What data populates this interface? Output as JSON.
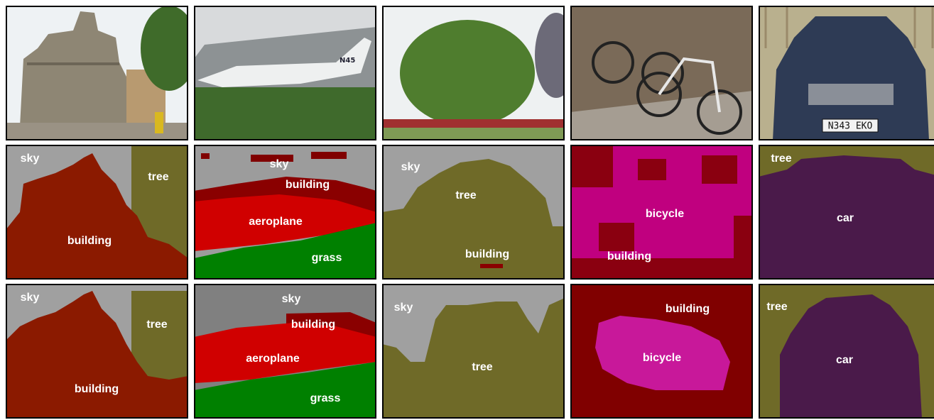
{
  "columns": [
    {
      "prediction": [
        "sky",
        "tree",
        "building"
      ],
      "ground_truth": [
        "sky",
        "tree",
        "building"
      ]
    },
    {
      "photo_text": "N45",
      "prediction": [
        "sky",
        "building",
        "aeroplane",
        "grass"
      ],
      "ground_truth": [
        "sky",
        "building",
        "aeroplane",
        "grass"
      ]
    },
    {
      "prediction": [
        "sky",
        "tree",
        "building"
      ],
      "ground_truth": [
        "sky",
        "tree"
      ]
    },
    {
      "prediction": [
        "bicycle",
        "building"
      ],
      "ground_truth": [
        "building",
        "bicycle"
      ]
    },
    {
      "photo_text": "N343 EKO",
      "prediction": [
        "tree",
        "car"
      ],
      "ground_truth": [
        "tree",
        "car"
      ]
    }
  ]
}
